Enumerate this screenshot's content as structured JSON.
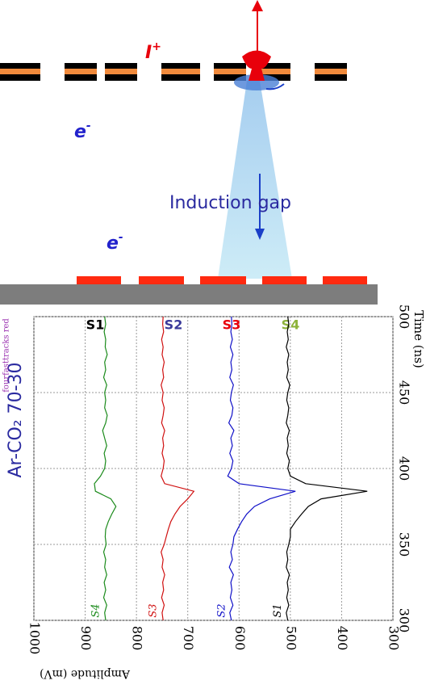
{
  "diagram": {
    "ion": {
      "symbol": "I",
      "charge": "+"
    },
    "electron_upper": {
      "symbol": "e",
      "charge": "-"
    },
    "electron_lower": {
      "symbol": "e",
      "charge": "-"
    },
    "gap_label": "Induction gap"
  },
  "chart_data": {
    "type": "line",
    "side_label": "Ar-CO₂ 70-30",
    "note": "fourfasttracks red",
    "top_labels": [
      {
        "text": "S1",
        "color": "#000000"
      },
      {
        "text": "S2",
        "color": "#3a3a9a"
      },
      {
        "text": "S3",
        "color": "#e8000b"
      },
      {
        "text": "S4",
        "color": "#8db33a"
      }
    ],
    "x_label": "Time (ns)",
    "y_label": "Amplitude (mV)",
    "x": [
      300,
      305,
      310,
      315,
      320,
      325,
      330,
      335,
      340,
      345,
      350,
      355,
      360,
      365,
      370,
      375,
      380,
      385,
      390,
      395,
      400,
      405,
      410,
      415,
      420,
      425,
      430,
      435,
      440,
      445,
      450,
      455,
      460,
      465,
      470,
      475,
      480,
      485,
      490,
      495,
      500
    ],
    "xlim": [
      300,
      500
    ],
    "xticks": [
      300,
      350,
      400,
      450,
      500
    ],
    "ylim": [
      1000,
      300
    ],
    "yticks": [
      1000,
      900,
      800,
      700,
      600,
      500,
      400,
      300
    ],
    "grid": true,
    "series": [
      {
        "name": "S4",
        "color": "#1a8a1a",
        "values": [
          860,
          862,
          858,
          864,
          860,
          863,
          858,
          862,
          860,
          864,
          859,
          861,
          860,
          855,
          848,
          840,
          850,
          880,
          882,
          870,
          862,
          860,
          863,
          858,
          862,
          866,
          860,
          857,
          862,
          860,
          862,
          858,
          864,
          860,
          862,
          857,
          861,
          860,
          863,
          860,
          862
        ]
      },
      {
        "name": "S3",
        "color": "#d01010",
        "values": [
          748,
          750,
          746,
          751,
          747,
          749,
          745,
          750,
          748,
          752,
          746,
          742,
          738,
          733,
          725,
          715,
          700,
          688,
          745,
          752,
          748,
          746,
          750,
          747,
          749,
          745,
          751,
          748,
          746,
          750,
          748,
          752,
          747,
          749,
          746,
          750,
          748,
          751,
          747,
          749,
          748
        ]
      },
      {
        "name": "S2",
        "color": "#1010c8",
        "values": [
          615,
          618,
          612,
          617,
          614,
          616,
          611,
          619,
          613,
          616,
          612,
          610,
          603,
          595,
          585,
          570,
          540,
          490,
          600,
          622,
          615,
          612,
          618,
          613,
          616,
          610,
          620,
          614,
          612,
          617,
          615,
          611,
          618,
          614,
          616,
          612,
          617,
          613,
          616,
          614,
          615
        ]
      },
      {
        "name": "S1",
        "color": "#000000",
        "values": [
          505,
          508,
          503,
          507,
          504,
          506,
          502,
          508,
          505,
          507,
          503,
          500,
          500,
          490,
          478,
          465,
          440,
          350,
          470,
          500,
          505,
          502,
          507,
          504,
          506,
          502,
          508,
          505,
          503,
          507,
          505,
          501,
          507,
          504,
          506,
          503,
          508,
          504,
          506,
          503,
          505
        ]
      }
    ]
  }
}
